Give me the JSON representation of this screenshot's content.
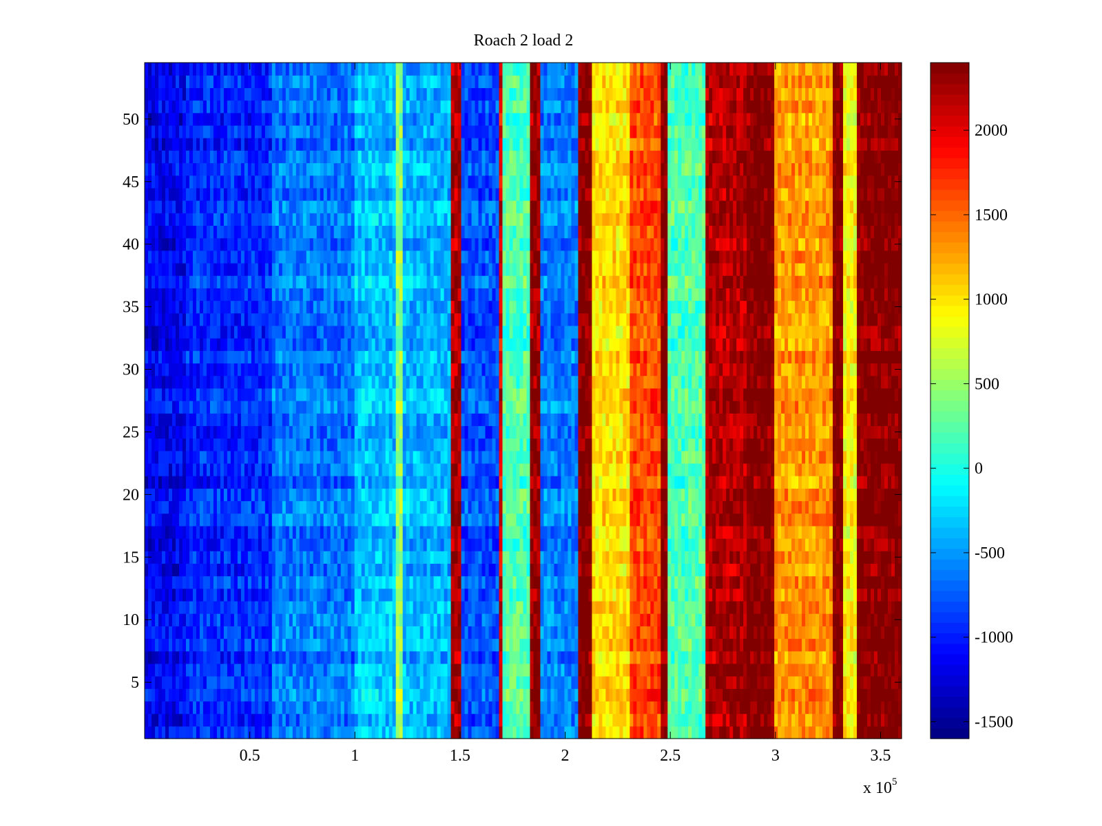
{
  "chart_data": {
    "type": "heatmap",
    "title": "Roach 2 load 2",
    "xlabel": "",
    "ylabel": "",
    "x_exponent_label": {
      "base": "x 10",
      "exponent": "5"
    },
    "xlim": [
      0,
      3.6
    ],
    "ylim": [
      0.5,
      54.5
    ],
    "x_ticks": [
      0.5,
      1,
      1.5,
      2,
      2.5,
      3,
      3.5
    ],
    "x_tick_labels": [
      "0.5",
      "1",
      "1.5",
      "2",
      "2.5",
      "3",
      "3.5"
    ],
    "y_ticks": [
      5,
      10,
      15,
      20,
      25,
      30,
      35,
      40,
      45,
      50
    ],
    "y_tick_labels": [
      "5",
      "10",
      "15",
      "20",
      "25",
      "30",
      "35",
      "40",
      "45",
      "50"
    ],
    "colormap": "jet",
    "clim": [
      -1600,
      2400
    ],
    "colorbar": {
      "ticks": [
        -1500,
        -1000,
        -500,
        0,
        500,
        1000,
        1500,
        2000
      ],
      "tick_labels": [
        "-1500",
        "-1000",
        "-500",
        "0",
        "500",
        "1000",
        "1500",
        "2000"
      ],
      "placement": "right"
    },
    "rows": 54,
    "column_profile": [
      {
        "x_start": 0.0,
        "x_end": 0.2,
        "value": -1150
      },
      {
        "x_start": 0.2,
        "x_end": 0.6,
        "value": -950
      },
      {
        "x_start": 0.6,
        "x_end": 1.0,
        "value": -650
      },
      {
        "x_start": 1.0,
        "x_end": 1.2,
        "value": -350
      },
      {
        "x_start": 1.2,
        "x_end": 1.23,
        "value": 500
      },
      {
        "x_start": 1.23,
        "x_end": 1.46,
        "value": -400
      },
      {
        "x_start": 1.46,
        "x_end": 1.5,
        "value": 2200
      },
      {
        "x_start": 1.5,
        "x_end": 1.68,
        "value": -800
      },
      {
        "x_start": 1.68,
        "x_end": 1.71,
        "value": 2000
      },
      {
        "x_start": 1.71,
        "x_end": 1.84,
        "value": 200
      },
      {
        "x_start": 1.84,
        "x_end": 1.88,
        "value": 2300
      },
      {
        "x_start": 1.88,
        "x_end": 2.07,
        "value": -600
      },
      {
        "x_start": 2.07,
        "x_end": 2.13,
        "value": 2400
      },
      {
        "x_start": 2.13,
        "x_end": 2.3,
        "value": 1000
      },
      {
        "x_start": 2.3,
        "x_end": 2.45,
        "value": 1600
      },
      {
        "x_start": 2.45,
        "x_end": 2.49,
        "value": 2400
      },
      {
        "x_start": 2.49,
        "x_end": 2.67,
        "value": 200
      },
      {
        "x_start": 2.67,
        "x_end": 2.86,
        "value": 2200
      },
      {
        "x_start": 2.86,
        "x_end": 3.0,
        "value": 2400
      },
      {
        "x_start": 3.0,
        "x_end": 3.27,
        "value": 1300
      },
      {
        "x_start": 3.27,
        "x_end": 3.33,
        "value": 2400
      },
      {
        "x_start": 3.33,
        "x_end": 3.38,
        "value": 900
      },
      {
        "x_start": 3.38,
        "x_end": 3.6,
        "value": 2400
      }
    ]
  }
}
